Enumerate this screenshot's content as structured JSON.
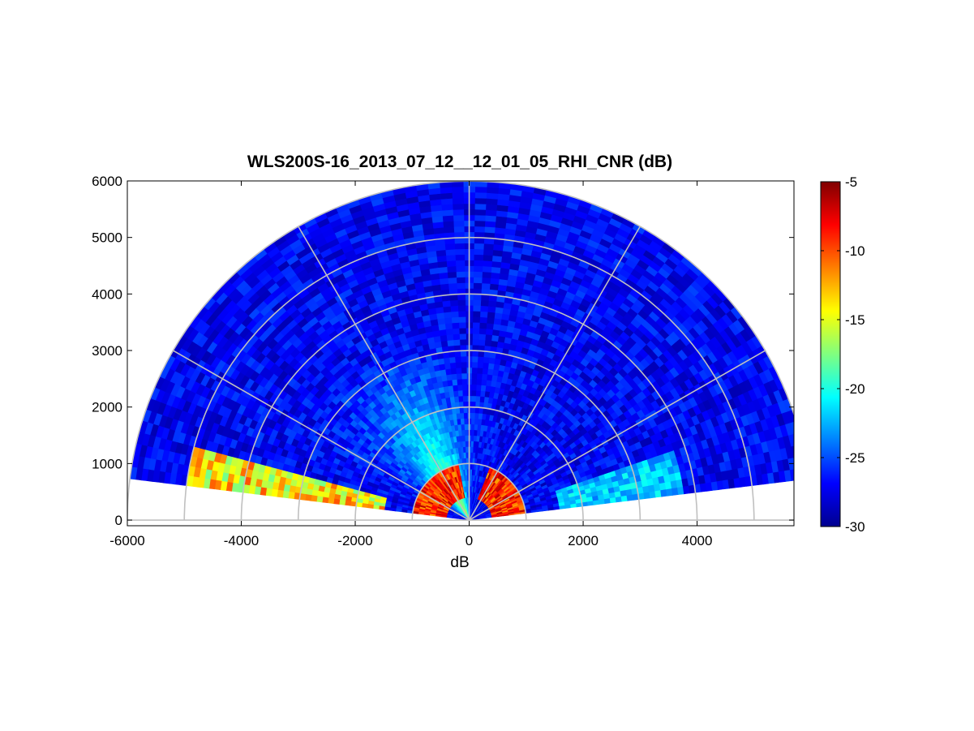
{
  "chart_data": {
    "type": "heatmap",
    "title": "WLS200S-16_2013_07_12__12_01_05_RHI_CNR (dB)",
    "xlabel": "dB",
    "ylabel": "",
    "xlim": [
      -6000,
      5700
    ],
    "ylim": [
      -100,
      6000
    ],
    "xticks": [
      -6000,
      -4000,
      -2000,
      0,
      2000,
      4000
    ],
    "yticks": [
      0,
      1000,
      2000,
      3000,
      4000,
      5000,
      6000
    ],
    "colorbar": {
      "colormap": "jet",
      "range": [
        -30,
        -5
      ],
      "ticks": [
        -30,
        -25,
        -20,
        -15,
        -10,
        -5
      ]
    },
    "polar_grid": {
      "range_rings": [
        1000,
        2000,
        3000,
        4000,
        5000,
        6000
      ],
      "angles_deg": [
        0,
        30,
        60,
        90,
        120,
        150,
        180
      ]
    },
    "scan": {
      "elevation_start_deg": 7,
      "elevation_end_deg": 173,
      "max_range": 6000,
      "low_range_hot_band": [
        400,
        1000
      ],
      "plume_center_deg": 118,
      "plume_peak_cnr": -16
    },
    "grid_on": true
  }
}
